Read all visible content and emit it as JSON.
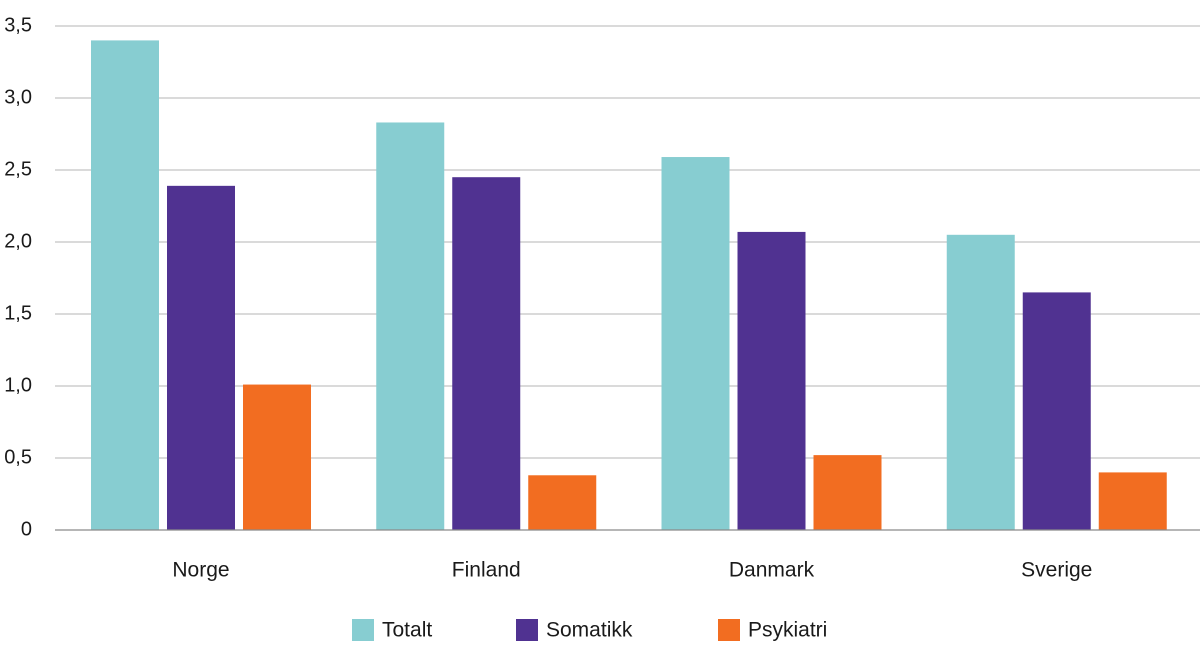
{
  "chart_data": {
    "type": "bar",
    "categories": [
      "Norge",
      "Finland",
      "Danmark",
      "Sverige"
    ],
    "series": [
      {
        "name": "Totalt",
        "color": "#87cdd1",
        "values": [
          3.4,
          2.83,
          2.59,
          2.05
        ]
      },
      {
        "name": "Somatikk",
        "color": "#503291",
        "values": [
          2.39,
          2.45,
          2.07,
          1.65
        ]
      },
      {
        "name": "Psykiatri",
        "color": "#f26d21",
        "values": [
          1.01,
          0.38,
          0.52,
          0.4
        ]
      }
    ],
    "y_ticks": [
      "0",
      "0,5",
      "1,0",
      "1,5",
      "2,0",
      "2,5",
      "3,0",
      "3,5"
    ],
    "ylim": [
      0,
      3.5
    ],
    "grid": true,
    "legend_position": "bottom-center",
    "title": "",
    "xlabel": "",
    "ylabel": ""
  }
}
